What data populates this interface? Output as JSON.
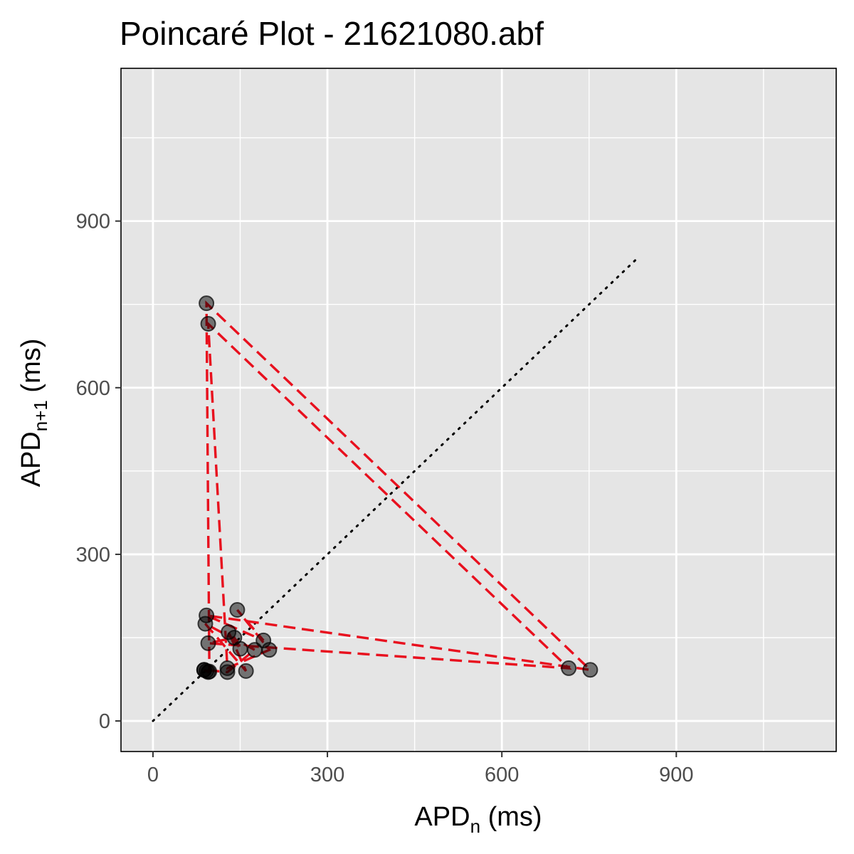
{
  "chart_data": {
    "type": "scatter",
    "title": "Poincaré Plot - 21621080.abf",
    "xlabel": {
      "main": "APD",
      "sub": "n",
      "unit": " (ms)"
    },
    "ylabel": {
      "main": "APD",
      "sub": "n+1",
      "unit": " (ms)"
    },
    "xlim": [
      -55,
      1175
    ],
    "ylim": [
      -55,
      1175
    ],
    "major_ticks": [
      0,
      300,
      600,
      900
    ],
    "tick_labels": [
      "0",
      "300",
      "600",
      "900"
    ],
    "minor_ticks": [
      150,
      450,
      750,
      1050
    ],
    "grid": true,
    "identity_line": {
      "from": [
        0,
        0
      ],
      "to": [
        830,
        830
      ],
      "style": "dotted",
      "color": "#000000"
    },
    "path_color": "#e8101e",
    "point_color": "#000000",
    "series": [
      {
        "points": [
          [
            88,
            92
          ],
          [
            92,
            90
          ],
          [
            95,
            88
          ],
          [
            97,
            89
          ],
          [
            92,
            752
          ],
          [
            752,
            92
          ],
          [
            92,
            190
          ],
          [
            190,
            145
          ],
          [
            145,
            200
          ],
          [
            200,
            128
          ],
          [
            128,
            95
          ],
          [
            95,
            715
          ],
          [
            715,
            95
          ],
          [
            95,
            140
          ],
          [
            140,
            150
          ],
          [
            150,
            130
          ],
          [
            130,
            160
          ],
          [
            160,
            90
          ],
          [
            90,
            175
          ],
          [
            175,
            128
          ],
          [
            128,
            88
          ],
          [
            88,
            92
          ]
        ]
      }
    ]
  }
}
